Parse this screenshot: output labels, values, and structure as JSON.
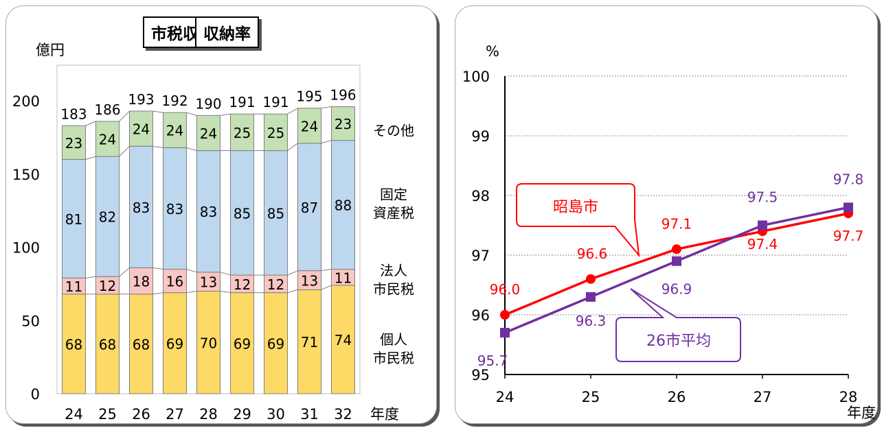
{
  "chart_data": [
    {
      "type": "bar",
      "stacked": true,
      "title": "市税収入額",
      "ylabel": "億円",
      "xlabel": "年度",
      "ylim": [
        0,
        200
      ],
      "yticks": [
        0,
        50,
        100,
        150,
        200
      ],
      "categories": [
        "24",
        "25",
        "26",
        "27",
        "28",
        "29",
        "30",
        "31",
        "32"
      ],
      "totals": [
        183,
        186,
        193,
        192,
        190,
        191,
        191,
        195,
        196
      ],
      "series": [
        {
          "name": "個人\n市民税",
          "color": "#fdd966",
          "values": [
            68,
            68,
            68,
            69,
            70,
            69,
            69,
            71,
            74
          ]
        },
        {
          "name": "法人\n市民税",
          "color": "#f8c6c3",
          "values": [
            11,
            12,
            18,
            16,
            13,
            12,
            12,
            13,
            11
          ]
        },
        {
          "name": "固定\n資産税",
          "color": "#bdd7ee",
          "values": [
            81,
            82,
            83,
            83,
            83,
            85,
            85,
            87,
            88
          ]
        },
        {
          "name": "その他",
          "color": "#c5e0b4",
          "values": [
            23,
            24,
            24,
            24,
            24,
            25,
            25,
            24,
            23
          ]
        }
      ],
      "grid": false,
      "legend": "right"
    },
    {
      "type": "line",
      "title": "収納率",
      "ylabel": "%",
      "xlabel": "年度",
      "ylim": [
        95,
        100
      ],
      "yticks": [
        95,
        96,
        97,
        98,
        99,
        100
      ],
      "x": [
        "24",
        "25",
        "26",
        "27",
        "28"
      ],
      "series": [
        {
          "name": "昭島市",
          "color": "#ff0000",
          "marker": "circle",
          "values": [
            96.0,
            96.6,
            97.1,
            97.4,
            97.7
          ]
        },
        {
          "name": "26市平均",
          "color": "#7030a0",
          "marker": "square",
          "values": [
            95.7,
            96.3,
            96.9,
            97.5,
            97.8
          ]
        }
      ],
      "grid": true,
      "legend": "callouts"
    }
  ]
}
